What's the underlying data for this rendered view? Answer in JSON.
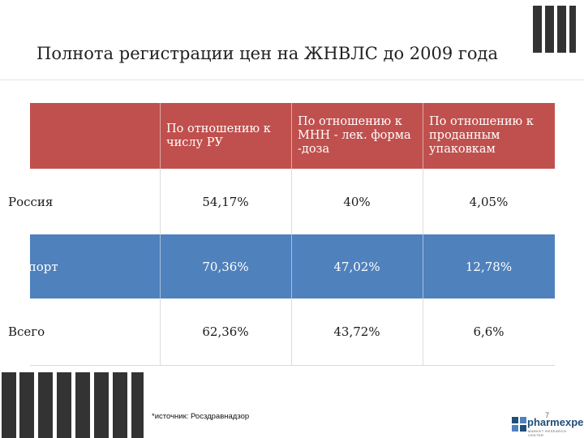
{
  "slide": {
    "title": "Полнота регистрации цен на ЖНВЛС до 2009 года",
    "source": "*источник: Росздравнадзор",
    "page_number": "7"
  },
  "table": {
    "headers": [
      "",
      "По отношению к числу РУ",
      "По отношению к МНН - лек. форма -доза",
      "По отношению к проданным упаковкам"
    ],
    "rows": [
      {
        "label": "Россия",
        "values": [
          "54,17%",
          "40%",
          "4,05%"
        ]
      },
      {
        "label": "Импорт",
        "values": [
          "70,36%",
          "47,02%",
          "12,78%"
        ]
      },
      {
        "label": "Всего",
        "values": [
          "62,36%",
          "43,72%",
          "6,6%"
        ]
      }
    ]
  },
  "logo": {
    "name": "pharmexpert",
    "tagline": "MARKET RESEARCH CENTER"
  },
  "colors": {
    "header_bg": "#c0504d",
    "highlight_row_bg": "#4f81bd",
    "deco_bars": "#333333",
    "logo_blue": "#1f4e79"
  },
  "icons": [
    "decorative-bars-icon",
    "pharmexpert-logo-icon"
  ]
}
